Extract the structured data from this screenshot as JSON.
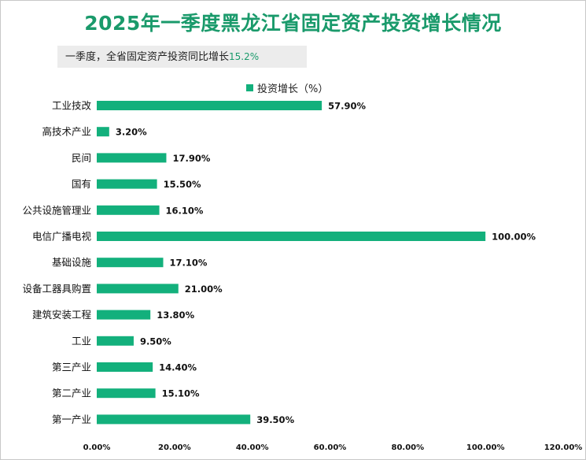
{
  "subtitle": {
    "text": "一季度，全省固定资产投资同比增长",
    "value": "15.2%"
  },
  "chart_data": {
    "type": "bar",
    "orientation": "horizontal",
    "title": "2025年一季度黑龙江省固定资产投资增长情况",
    "categories": [
      "工业技改",
      "高技术产业",
      "民间",
      "国有",
      "公共设施管理业",
      "电信广播电视",
      "基础设施",
      "设备工器具购置",
      "建筑安装工程",
      "工业",
      "第三产业",
      "第二产业",
      "第一产业"
    ],
    "series": [
      {
        "name": "投资增长（%）",
        "values": [
          57.9,
          3.2,
          17.9,
          15.5,
          16.1,
          100.0,
          17.1,
          21.0,
          13.8,
          9.5,
          14.4,
          15.1,
          39.5
        ],
        "labels": [
          "57.90%",
          "3.20%",
          "17.90%",
          "15.50%",
          "16.10%",
          "100.00%",
          "17.10%",
          "21.00%",
          "13.80%",
          "9.50%",
          "14.40%",
          "15.10%",
          "39.50%"
        ]
      }
    ],
    "xlim": [
      0,
      120
    ],
    "xticks": [
      "0.00%",
      "20.00%",
      "40.00%",
      "60.00%",
      "80.00%",
      "100.00%",
      "120.00%"
    ],
    "xlabel": "",
    "ylabel": "",
    "grid": false,
    "legend_position": "top-center",
    "bar_color": "#13b07c",
    "title_color": "#1a9a6b"
  }
}
